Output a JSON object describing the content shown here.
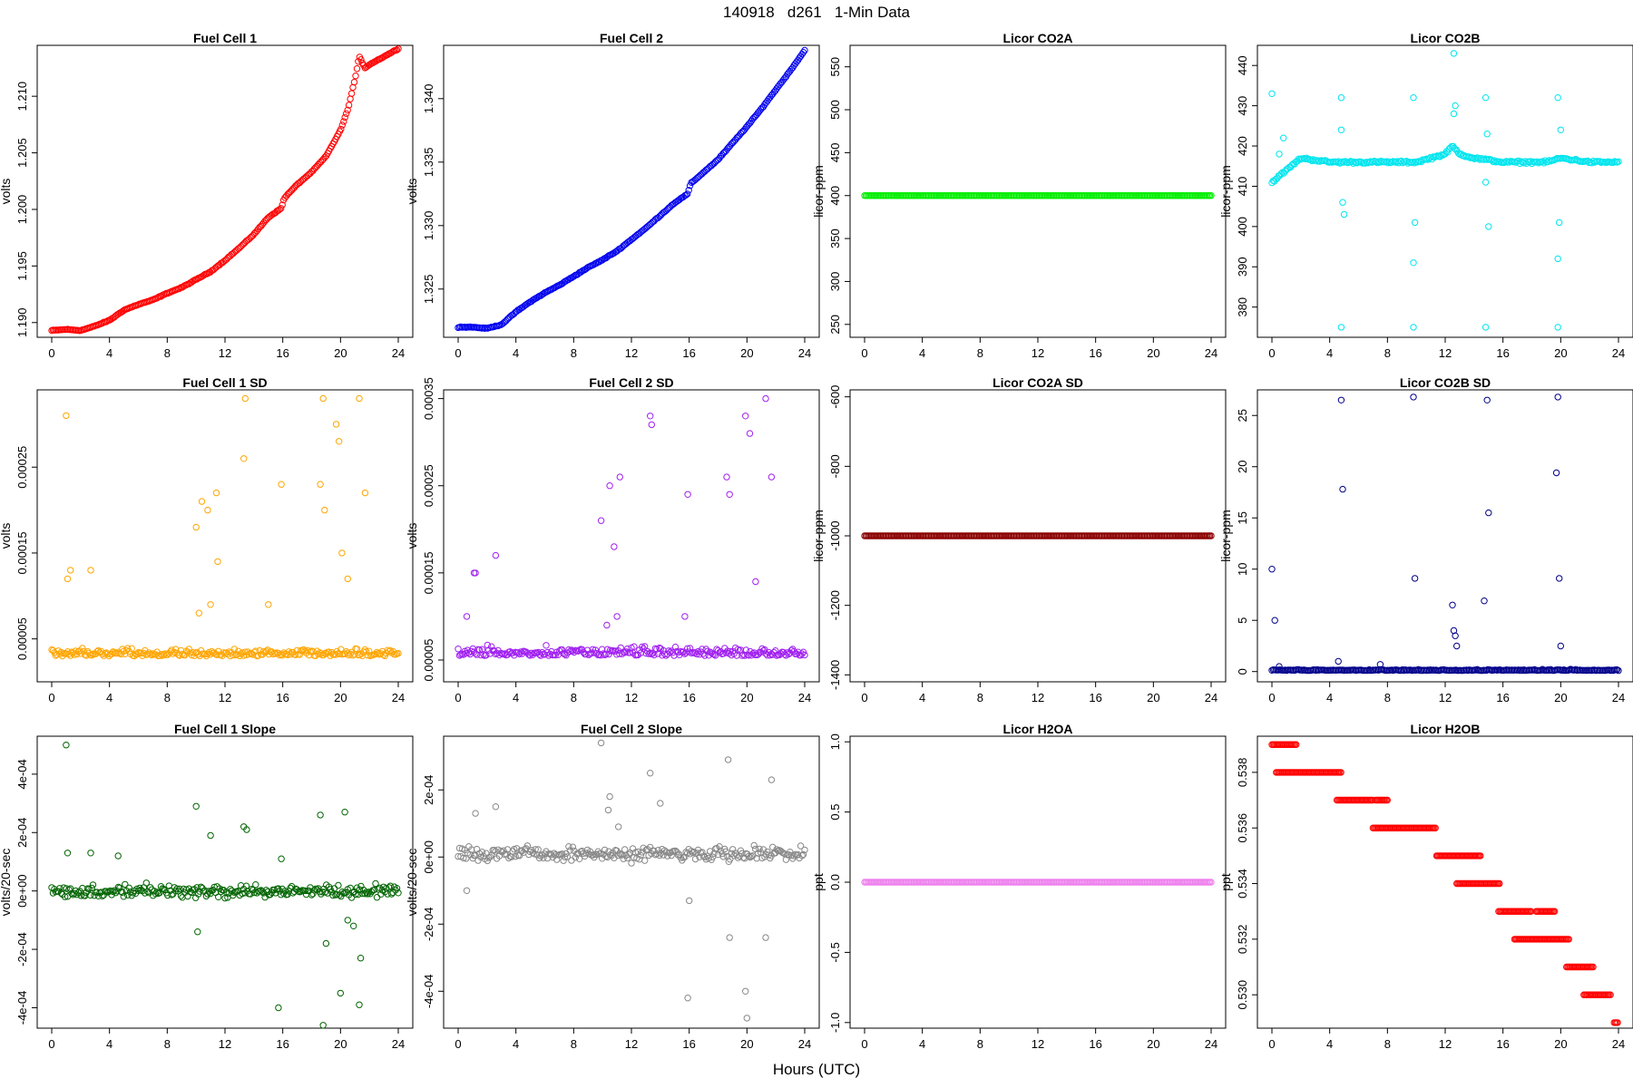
{
  "page": {
    "title": "140918   d261   1-Min Data",
    "xlabel": "Hours (UTC)"
  },
  "chart_data": [
    {
      "id": "fc1",
      "type": "scatter",
      "title": "Fuel Cell 1",
      "xlabel": "",
      "ylabel": "volts",
      "color": "#ff0000",
      "marker": "open-circle",
      "xlim": [
        0,
        24
      ],
      "xticks": [
        0,
        4,
        8,
        12,
        16,
        20,
        24
      ],
      "xtick_labels": [
        "0",
        "4",
        "8",
        "12",
        "16",
        "20",
        "24"
      ],
      "ylim": [
        1.1887,
        1.2145
      ],
      "yticks": [
        1.19,
        1.195,
        1.2,
        1.205,
        1.21
      ],
      "ytick_labels": [
        "1.190",
        "1.195",
        "1.200",
        "1.205",
        "1.210"
      ],
      "x": [
        0,
        1,
        2,
        3,
        4,
        5,
        6,
        7,
        8,
        9,
        10,
        11,
        12,
        13,
        14,
        15,
        15.9,
        16.1,
        17,
        18,
        19,
        20,
        20.5,
        21,
        21.3,
        21.7,
        22,
        23,
        24
      ],
      "y": [
        1.1893,
        1.1894,
        1.1893,
        1.1897,
        1.1902,
        1.1911,
        1.1916,
        1.192,
        1.1926,
        1.1931,
        1.1938,
        1.1945,
        1.1955,
        1.1966,
        1.1978,
        1.1993,
        1.2001,
        1.201,
        1.2022,
        1.2033,
        1.2047,
        1.207,
        1.2088,
        1.2115,
        1.2135,
        1.2125,
        1.2128,
        1.2135,
        1.2142
      ]
    },
    {
      "id": "fc2",
      "type": "scatter",
      "title": "Fuel Cell 2",
      "xlabel": "",
      "ylabel": "volts",
      "color": "#0000ee",
      "marker": "open-circle",
      "xlim": [
        0,
        24
      ],
      "xticks": [
        0,
        4,
        8,
        12,
        16,
        20,
        24
      ],
      "xtick_labels": [
        "0",
        "4",
        "8",
        "12",
        "16",
        "20",
        "24"
      ],
      "ylim": [
        1.3212,
        1.3442
      ],
      "yticks": [
        1.325,
        1.33,
        1.335,
        1.34
      ],
      "ytick_labels": [
        "1.325",
        "1.330",
        "1.335",
        "1.340"
      ],
      "x": [
        0,
        1,
        2,
        3,
        4,
        5,
        6,
        7,
        8,
        9,
        10,
        11,
        12,
        13,
        14,
        15,
        15.9,
        16.1,
        17,
        18,
        19,
        20,
        21,
        22,
        23,
        24
      ],
      "y": [
        1.322,
        1.322,
        1.3219,
        1.3222,
        1.3232,
        1.324,
        1.3247,
        1.3253,
        1.326,
        1.3267,
        1.3273,
        1.328,
        1.3289,
        1.3298,
        1.3308,
        1.3318,
        1.3325,
        1.3333,
        1.3342,
        1.3352,
        1.3365,
        1.3378,
        1.3392,
        1.3407,
        1.3422,
        1.3438
      ]
    },
    {
      "id": "co2a",
      "type": "scatter",
      "title": "Licor CO2A",
      "xlabel": "",
      "ylabel": "licor-ppm",
      "color": "#00ee00",
      "marker": "open-circle",
      "xlim": [
        0,
        24
      ],
      "xticks": [
        0,
        4,
        8,
        12,
        16,
        20,
        24
      ],
      "xtick_labels": [
        "0",
        "4",
        "8",
        "12",
        "16",
        "20",
        "24"
      ],
      "ylim": [
        235,
        575
      ],
      "yticks": [
        250,
        300,
        350,
        400,
        450,
        500,
        550
      ],
      "ytick_labels": [
        "250",
        "300",
        "350",
        "400",
        "450",
        "500",
        "550"
      ],
      "x": [
        0,
        24
      ],
      "y": [
        400,
        400
      ]
    },
    {
      "id": "co2b",
      "type": "scatter",
      "title": "Licor CO2B",
      "xlabel": "",
      "ylabel": "licor-ppm",
      "color": "#00e5ee",
      "marker": "open-circle",
      "xlim": [
        0,
        24
      ],
      "xticks": [
        0,
        4,
        8,
        12,
        16,
        20,
        24
      ],
      "xtick_labels": [
        "0",
        "4",
        "8",
        "12",
        "16",
        "20",
        "24"
      ],
      "ylim": [
        372.5,
        445
      ],
      "yticks": [
        380,
        390,
        400,
        410,
        420,
        430,
        440
      ],
      "ytick_labels": [
        "380",
        "390",
        "400",
        "410",
        "420",
        "430",
        "440"
      ],
      "x": [
        0,
        2,
        4,
        6,
        8,
        10,
        12,
        12.5,
        13,
        14,
        16,
        18,
        19,
        20,
        22,
        24
      ],
      "y": [
        411,
        417,
        416,
        416,
        416,
        416,
        418,
        420,
        418,
        417,
        416,
        416,
        416,
        417,
        416,
        416
      ],
      "outliers_x": [
        0,
        0.5,
        0.8,
        4.8,
        4.8,
        4.9,
        5.0,
        4.8,
        9.8,
        9.8,
        9.9,
        9.8,
        12.6,
        12.7,
        12.6,
        14.8,
        14.8,
        15.0,
        14.8,
        14.9,
        19.8,
        19.8,
        19.9,
        19.8,
        20.0
      ],
      "outliers_y": [
        433,
        418,
        422,
        432,
        375,
        406,
        403,
        424,
        432,
        375,
        401,
        391,
        443,
        430,
        428,
        432,
        375,
        400,
        411,
        423,
        432,
        375,
        401,
        392,
        424
      ]
    },
    {
      "id": "fc1sd",
      "type": "scatter",
      "title": "Fuel Cell 1 SD",
      "xlabel": "",
      "ylabel": "volts",
      "color": "#ffa500",
      "marker": "open-circle",
      "xlim": [
        0,
        24
      ],
      "xticks": [
        0,
        4,
        8,
        12,
        16,
        20,
        24
      ],
      "xtick_labels": [
        "0",
        "4",
        "8",
        "12",
        "16",
        "20",
        "24"
      ],
      "ylim": [
        0.0,
        0.00034
      ],
      "yticks": [
        5e-05,
        0.00015,
        0.00025
      ],
      "ytick_labels": [
        "0.00005",
        "0.00015",
        "0.00025"
      ],
      "baseline": 3e-05,
      "spread": 1.2e-05,
      "outliers_x": [
        1.0,
        1.1,
        1.3,
        2.7,
        10.0,
        10.4,
        10.8,
        11.4,
        11.5,
        13.3,
        13.4,
        15.9,
        18.6,
        18.8,
        18.9,
        19.7,
        19.9,
        20.1,
        21.3,
        21.7,
        10.2,
        11.0,
        15.0,
        20.5
      ],
      "outliers_y": [
        0.00031,
        0.00012,
        0.00013,
        0.00013,
        0.00018,
        0.00021,
        0.0002,
        0.00022,
        0.00014,
        0.00026,
        0.00033,
        0.00023,
        0.00023,
        0.00033,
        0.0002,
        0.0003,
        0.00028,
        0.00015,
        0.00033,
        0.00022,
        8e-05,
        9e-05,
        9e-05,
        0.00012
      ]
    },
    {
      "id": "fc2sd",
      "type": "scatter",
      "title": "Fuel Cell 2 SD",
      "xlabel": "",
      "ylabel": "volts",
      "color": "#a020f0",
      "marker": "open-circle",
      "xlim": [
        0,
        24
      ],
      "xticks": [
        0,
        4,
        8,
        12,
        16,
        20,
        24
      ],
      "xtick_labels": [
        "0",
        "4",
        "8",
        "12",
        "16",
        "20",
        "24"
      ],
      "ylim": [
        2.5e-05,
        0.00036
      ],
      "yticks": [
        5e-05,
        0.00015,
        0.00025,
        0.00035
      ],
      "ytick_labels": [
        "0.00005",
        "0.00015",
        "0.00025",
        "0.00035"
      ],
      "baseline": 5.5e-05,
      "spread": 1.4e-05,
      "outliers_x": [
        1.1,
        1.2,
        2.6,
        9.9,
        10.5,
        10.8,
        11.2,
        13.3,
        13.4,
        15.9,
        18.6,
        18.8,
        19.9,
        20.2,
        21.3,
        21.7,
        10.3,
        11.0,
        15.7,
        20.6,
        0.6
      ],
      "outliers_y": [
        0.00015,
        0.00015,
        0.00017,
        0.00021,
        0.00025,
        0.00018,
        0.00026,
        0.00033,
        0.00032,
        0.00024,
        0.00026,
        0.00024,
        0.00033,
        0.00031,
        0.00035,
        0.00026,
        9e-05,
        0.0001,
        0.0001,
        0.00014,
        0.0001
      ]
    },
    {
      "id": "co2asd",
      "type": "scatter",
      "title": "Licor CO2A SD",
      "xlabel": "",
      "ylabel": "licor-ppm",
      "color": "#8b0000",
      "marker": "open-circle",
      "xlim": [
        0,
        24
      ],
      "xticks": [
        0,
        4,
        8,
        12,
        16,
        20,
        24
      ],
      "xtick_labels": [
        "0",
        "4",
        "8",
        "12",
        "16",
        "20",
        "24"
      ],
      "ylim": [
        -1420,
        -580
      ],
      "yticks": [
        -1400,
        -1200,
        -1000,
        -800,
        -600
      ],
      "ytick_labels": [
        "-1400",
        "-1200",
        "-1000",
        "-800",
        "-600"
      ],
      "x": [
        0,
        24
      ],
      "y": [
        -1000,
        -1000
      ]
    },
    {
      "id": "co2bsd",
      "type": "scatter",
      "title": "Licor CO2B SD",
      "xlabel": "",
      "ylabel": "licor-ppm",
      "color": "#00008b",
      "marker": "open-circle",
      "xlim": [
        0,
        24
      ],
      "xticks": [
        0,
        4,
        8,
        12,
        16,
        20,
        24
      ],
      "xtick_labels": [
        "0",
        "4",
        "8",
        "12",
        "16",
        "20",
        "24"
      ],
      "ylim": [
        -1,
        27.5
      ],
      "yticks": [
        0,
        5,
        10,
        15,
        20,
        25
      ],
      "ytick_labels": [
        "0",
        "5",
        "10",
        "15",
        "20",
        "25"
      ],
      "baseline": 0.1,
      "spread": 0.15,
      "outliers_x": [
        0,
        0.2,
        4.8,
        4.9,
        9.8,
        9.9,
        14.9,
        15.0,
        19.8,
        19.9,
        12.5,
        12.6,
        12.7,
        12.8,
        14.7,
        19.7,
        20.0,
        0.5,
        4.6,
        7.5
      ],
      "outliers_y": [
        10,
        5,
        26.5,
        17.8,
        26.8,
        9.1,
        26.5,
        15.5,
        26.8,
        9.1,
        6.5,
        4,
        3.5,
        2.5,
        6.9,
        19.4,
        2.5,
        0.5,
        1,
        0.7
      ]
    },
    {
      "id": "fc1slope",
      "type": "scatter",
      "title": "Fuel Cell 1 Slope",
      "xlabel": "",
      "ylabel": "volts/20-sec",
      "color": "#006400",
      "marker": "open-circle",
      "xlim": [
        0,
        24
      ],
      "xticks": [
        0,
        4,
        8,
        12,
        16,
        20,
        24
      ],
      "xtick_labels": [
        "0",
        "4",
        "8",
        "12",
        "16",
        "20",
        "24"
      ],
      "ylim": [
        -0.00047,
        0.00053
      ],
      "yticks": [
        -0.0004,
        -0.0002,
        0,
        0.0002,
        0.0004
      ],
      "ytick_labels": [
        "-4e-04",
        "-2e-04",
        "0e+00",
        "2e-04",
        "4e-04"
      ],
      "baseline": 0.0,
      "spread": 3e-05,
      "outliers_x": [
        1.0,
        1.1,
        2.7,
        4.6,
        10.0,
        10.1,
        11.0,
        13.3,
        13.5,
        15.7,
        15.9,
        18.6,
        18.8,
        19.0,
        20.0,
        20.3,
        20.5,
        20.9,
        21.3,
        21.4
      ],
      "outliers_y": [
        0.0005,
        0.00013,
        0.00013,
        0.00012,
        0.00029,
        -0.00014,
        0.00019,
        0.00022,
        0.00021,
        -0.0004,
        0.00011,
        0.00026,
        -0.00046,
        -0.00018,
        -0.00035,
        0.00027,
        -0.0001,
        -0.00012,
        -0.00039,
        -0.00023
      ]
    },
    {
      "id": "fc2slope",
      "type": "scatter",
      "title": "Fuel Cell 2 Slope",
      "xlabel": "",
      "ylabel": "volts/20-sec",
      "color": "#888888",
      "marker": "open-circle",
      "xlim": [
        0,
        24
      ],
      "xticks": [
        0,
        4,
        8,
        12,
        16,
        20,
        24
      ],
      "xtick_labels": [
        "0",
        "4",
        "8",
        "12",
        "16",
        "20",
        "24"
      ],
      "ylim": [
        -0.00051,
        0.00036
      ],
      "yticks": [
        -0.0004,
        -0.0002,
        0,
        0.0002
      ],
      "ytick_labels": [
        "-4e-04",
        "-2e-04",
        "0e+00",
        "2e-04"
      ],
      "baseline": 1e-05,
      "spread": 3e-05,
      "outliers_x": [
        0.6,
        1.2,
        2.6,
        9.9,
        10.5,
        11.1,
        13.3,
        14.0,
        15.9,
        18.7,
        18.8,
        19.9,
        20.0,
        21.3,
        21.7,
        16.0,
        10.4
      ],
      "outliers_y": [
        -0.0001,
        0.00013,
        0.00015,
        0.00034,
        0.00018,
        9e-05,
        0.00025,
        0.00016,
        -0.00042,
        0.00029,
        -0.00024,
        -0.0004,
        -0.00048,
        -0.00024,
        0.00023,
        -0.00013,
        0.00014
      ]
    },
    {
      "id": "h2oa",
      "type": "scatter",
      "title": "Licor H2OA",
      "xlabel": "",
      "ylabel": "ppt",
      "color": "#ee82ee",
      "marker": "open-circle",
      "xlim": [
        0,
        24
      ],
      "xticks": [
        0,
        4,
        8,
        12,
        16,
        20,
        24
      ],
      "xtick_labels": [
        "0",
        "4",
        "8",
        "12",
        "16",
        "20",
        "24"
      ],
      "ylim": [
        -1.04,
        1.04
      ],
      "yticks": [
        -1,
        -0.5,
        0,
        0.5,
        1
      ],
      "ytick_labels": [
        "-1.0",
        "-0.5",
        "0.0",
        "0.5",
        "1.0"
      ],
      "x": [
        0,
        24
      ],
      "y": [
        0,
        0
      ]
    },
    {
      "id": "h2ob",
      "type": "scatter",
      "title": "Licor H2OB",
      "xlabel": "",
      "ylabel": "ppt",
      "color": "#ff0000",
      "marker": "open-circle",
      "xlim": [
        0,
        24
      ],
      "xticks": [
        0,
        4,
        8,
        12,
        16,
        20,
        24
      ],
      "xtick_labels": [
        "0",
        "4",
        "8",
        "12",
        "16",
        "20",
        "24"
      ],
      "ylim": [
        0.5288,
        0.5393
      ],
      "yticks": [
        0.53,
        0.532,
        0.534,
        0.536,
        0.538
      ],
      "ytick_labels": [
        "0.530",
        "0.532",
        "0.534",
        "0.536",
        "0.538"
      ],
      "steps": [
        [
          0,
          1.7,
          0.539
        ],
        [
          0.3,
          4.8,
          0.538
        ],
        [
          4.5,
          7.0,
          0.537
        ],
        [
          7.2,
          8.0,
          0.537
        ],
        [
          7.0,
          11.4,
          0.536
        ],
        [
          11.4,
          14.5,
          0.535
        ],
        [
          12.8,
          15.8,
          0.534
        ],
        [
          15.7,
          18.0,
          0.533
        ],
        [
          18.3,
          19.6,
          0.533
        ],
        [
          16.8,
          20.6,
          0.532
        ],
        [
          20.4,
          22.3,
          0.531
        ],
        [
          21.6,
          23.5,
          0.53
        ],
        [
          23.7,
          24.0,
          0.529
        ]
      ]
    }
  ]
}
